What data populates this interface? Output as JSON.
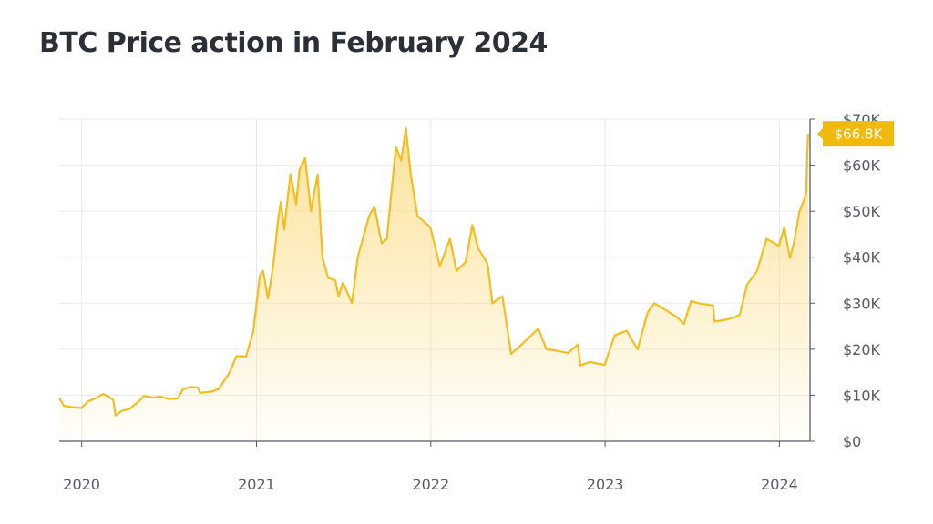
{
  "title": "BTC Price action in February 2024",
  "colors": {
    "line": "#f2be22",
    "fill_top": "#fbd978",
    "grid": "#e9e9e9",
    "axis": "#555b63",
    "callout": "#f0b90b"
  },
  "chart_data": {
    "type": "area",
    "title": "BTC Price action in February 2024",
    "xlabel": "",
    "ylabel": "",
    "xlim": [
      "2019-11-15",
      "2024-03-05"
    ],
    "ylim": [
      0,
      70000
    ],
    "y_ticks": [
      0,
      10000,
      20000,
      30000,
      40000,
      50000,
      60000,
      70000
    ],
    "y_tick_labels": [
      "$0",
      "$10K",
      "$20K",
      "$30K",
      "$40K",
      "$50K",
      "$60K",
      "$70K"
    ],
    "x_ticks": [
      "2020-01-01",
      "2021-01-01",
      "2022-01-01",
      "2023-01-01",
      "2024-01-01"
    ],
    "x_tick_labels": [
      "2020",
      "2021",
      "2022",
      "2023",
      "2024"
    ],
    "y_axis_side": "right",
    "grid": true,
    "last_value_label": "$66.8K",
    "series": [
      {
        "points": [
          [
            "2019-11-15",
            9400
          ],
          [
            "2019-11-25",
            7700
          ],
          [
            "2019-12-15",
            7400
          ],
          [
            "2019-12-31",
            7200
          ],
          [
            "2020-01-15",
            8700
          ],
          [
            "2020-02-01",
            9400
          ],
          [
            "2020-02-15",
            10300
          ],
          [
            "2020-02-28",
            9600
          ],
          [
            "2020-03-07",
            9000
          ],
          [
            "2020-03-12",
            5600
          ],
          [
            "2020-03-25",
            6600
          ],
          [
            "2020-04-10",
            7000
          ],
          [
            "2020-04-30",
            8700
          ],
          [
            "2020-05-10",
            9800
          ],
          [
            "2020-05-31",
            9500
          ],
          [
            "2020-06-15",
            9700
          ],
          [
            "2020-06-30",
            9200
          ],
          [
            "2020-07-20",
            9300
          ],
          [
            "2020-07-31",
            11300
          ],
          [
            "2020-08-15",
            11800
          ],
          [
            "2020-08-31",
            11700
          ],
          [
            "2020-09-05",
            10500
          ],
          [
            "2020-09-30",
            10800
          ],
          [
            "2020-10-15",
            11400
          ],
          [
            "2020-10-25",
            13100
          ],
          [
            "2020-11-05",
            14800
          ],
          [
            "2020-11-20",
            18500
          ],
          [
            "2020-12-10",
            18400
          ],
          [
            "2020-12-25",
            23700
          ],
          [
            "2021-01-08",
            36000
          ],
          [
            "2021-01-15",
            37000
          ],
          [
            "2021-01-25",
            31000
          ],
          [
            "2021-02-05",
            38000
          ],
          [
            "2021-02-15",
            48000
          ],
          [
            "2021-02-21",
            52000
          ],
          [
            "2021-02-28",
            46000
          ],
          [
            "2021-03-13",
            58000
          ],
          [
            "2021-03-25",
            51500
          ],
          [
            "2021-04-01",
            59000
          ],
          [
            "2021-04-13",
            61500
          ],
          [
            "2021-04-25",
            50000
          ],
          [
            "2021-05-09",
            58000
          ],
          [
            "2021-05-19",
            40000
          ],
          [
            "2021-05-31",
            35500
          ],
          [
            "2021-06-15",
            35000
          ],
          [
            "2021-06-22",
            31500
          ],
          [
            "2021-07-01",
            34500
          ],
          [
            "2021-07-20",
            30000
          ],
          [
            "2021-08-01",
            40000
          ],
          [
            "2021-08-25",
            49000
          ],
          [
            "2021-09-05",
            51000
          ],
          [
            "2021-09-20",
            43000
          ],
          [
            "2021-10-01",
            44000
          ],
          [
            "2021-10-20",
            64000
          ],
          [
            "2021-10-31",
            61000
          ],
          [
            "2021-11-10",
            68000
          ],
          [
            "2021-11-20",
            58000
          ],
          [
            "2021-12-04",
            49000
          ],
          [
            "2021-12-15",
            48000
          ],
          [
            "2021-12-31",
            46500
          ],
          [
            "2022-01-20",
            38000
          ],
          [
            "2022-02-10",
            44000
          ],
          [
            "2022-02-24",
            37000
          ],
          [
            "2022-03-15",
            39000
          ],
          [
            "2022-03-29",
            47000
          ],
          [
            "2022-04-10",
            42000
          ],
          [
            "2022-04-30",
            38500
          ],
          [
            "2022-05-10",
            30000
          ],
          [
            "2022-05-31",
            31500
          ],
          [
            "2022-06-18",
            19000
          ],
          [
            "2022-07-10",
            21000
          ],
          [
            "2022-08-14",
            24500
          ],
          [
            "2022-08-31",
            20000
          ],
          [
            "2022-09-15",
            19800
          ],
          [
            "2022-10-15",
            19200
          ],
          [
            "2022-11-05",
            21000
          ],
          [
            "2022-11-10",
            16500
          ],
          [
            "2022-11-30",
            17200
          ],
          [
            "2022-12-31",
            16600
          ],
          [
            "2023-01-21",
            23000
          ],
          [
            "2023-02-15",
            24000
          ],
          [
            "2023-03-10",
            20000
          ],
          [
            "2023-03-31",
            28000
          ],
          [
            "2023-04-14",
            30000
          ],
          [
            "2023-04-30",
            29000
          ],
          [
            "2023-05-31",
            27000
          ],
          [
            "2023-06-15",
            25500
          ],
          [
            "2023-06-30",
            30500
          ],
          [
            "2023-07-15",
            30000
          ],
          [
            "2023-08-15",
            29500
          ],
          [
            "2023-08-18",
            26000
          ],
          [
            "2023-09-15",
            26500
          ],
          [
            "2023-09-30",
            27000
          ],
          [
            "2023-10-10",
            27500
          ],
          [
            "2023-10-25",
            34000
          ],
          [
            "2023-11-15",
            37000
          ],
          [
            "2023-12-05",
            44000
          ],
          [
            "2023-12-31",
            42500
          ],
          [
            "2024-01-11",
            46500
          ],
          [
            "2024-01-23",
            39800
          ],
          [
            "2024-01-31",
            43000
          ],
          [
            "2024-02-12",
            50000
          ],
          [
            "2024-02-20",
            52000
          ],
          [
            "2024-02-26",
            54000
          ],
          [
            "2024-02-28",
            62000
          ],
          [
            "2024-03-01",
            66800
          ]
        ]
      }
    ]
  }
}
